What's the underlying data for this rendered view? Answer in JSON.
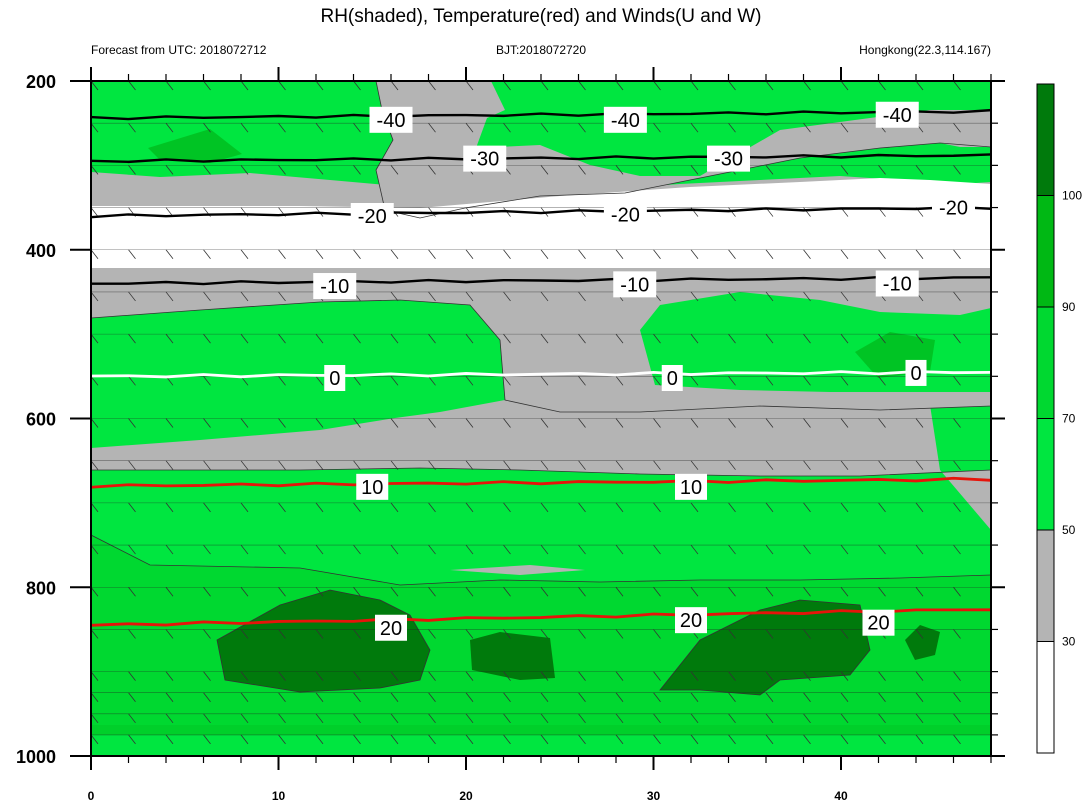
{
  "chart_data": {
    "type": "contour",
    "title": "RH(shaded), Temperature(red) and Winds(U and W)",
    "subtitle_left": "Forecast from UTC: 2018072712",
    "subtitle_center": "BJT:2018072720",
    "subtitle_right": "Hongkong(22.3,114.167)",
    "x": {
      "ticks": [
        0,
        10,
        20,
        30,
        40
      ],
      "minor_ticks": [
        2,
        4,
        6,
        8,
        12,
        14,
        16,
        18,
        22,
        24,
        26,
        28,
        32,
        34,
        36,
        38,
        42,
        44,
        46,
        48
      ],
      "range": [
        0,
        48
      ]
    },
    "y": {
      "ticks": [
        200,
        400,
        600,
        800,
        1000
      ],
      "range": [
        200,
        1000
      ],
      "reversed": true,
      "levels": [
        200,
        250,
        300,
        350,
        400,
        450,
        500,
        550,
        600,
        650,
        700,
        750,
        800,
        850,
        900,
        925,
        950,
        975,
        1000
      ]
    },
    "colorbar": {
      "levels": [
        30,
        50,
        70,
        90,
        100
      ],
      "colors": [
        "#ffffff",
        "#b4b4b4",
        "#00e640",
        "#00d830",
        "#00b814",
        "#007a0c"
      ],
      "tick_labels": [
        "30",
        "50",
        "70",
        "90",
        "100"
      ]
    },
    "temperature_contours": [
      {
        "label": "-40",
        "color": "#000000",
        "label_x": [
          16,
          28.5,
          43
        ],
        "label_p": [
          246,
          246,
          240
        ],
        "points": [
          [
            0,
            244
          ],
          [
            48,
            236
          ]
        ]
      },
      {
        "label": "-30",
        "color": "#000000",
        "label_x": [
          21,
          34,
          null
        ],
        "label_p": [
          292,
          292,
          null
        ],
        "points": [
          [
            0,
            295
          ],
          [
            48,
            288
          ]
        ]
      },
      {
        "label": "-20",
        "color": "#000000",
        "label_x": [
          15,
          28.5,
          46
        ],
        "label_p": [
          360,
          358,
          350
        ],
        "points": [
          [
            0,
            360
          ],
          [
            48,
            350
          ]
        ]
      },
      {
        "label": "-10",
        "color": "#000000",
        "label_x": [
          13,
          29,
          43
        ],
        "label_p": [
          443,
          441,
          440
        ],
        "points": [
          [
            0,
            440
          ],
          [
            48,
            433
          ]
        ]
      },
      {
        "label": "0",
        "color": "#ffffff",
        "label_x": [
          13,
          31,
          44
        ],
        "label_p": [
          552,
          552,
          546
        ],
        "points": [
          [
            0,
            550
          ],
          [
            48,
            545
          ]
        ]
      },
      {
        "label": "10",
        "color": "#e6140a",
        "label_x": [
          15,
          32,
          null
        ],
        "label_p": [
          681,
          681,
          null
        ],
        "points": [
          [
            0,
            680
          ],
          [
            48,
            672
          ]
        ]
      },
      {
        "label": "20",
        "color": "#e6140a",
        "label_x": [
          16,
          32,
          42
        ],
        "label_p": [
          848,
          839,
          842
        ],
        "points": [
          [
            0,
            845
          ],
          [
            48,
            826
          ]
        ]
      }
    ]
  }
}
